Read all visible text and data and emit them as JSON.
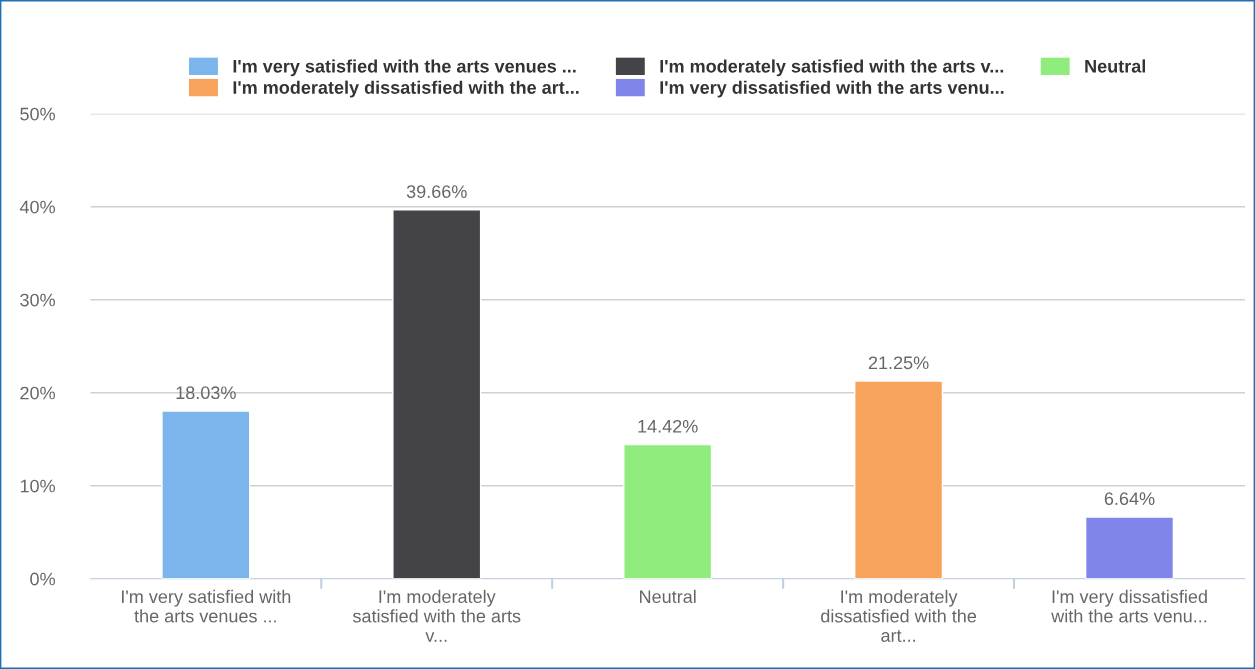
{
  "chart_data": {
    "type": "bar",
    "categories": [
      "I'm very satisfied with\nthe arts venues ...",
      "I'm moderately\nsatisfied with the arts\nv...",
      "Neutral",
      "I'm moderately\ndissatisfied with the\nart...",
      "I'm very dissatisfied\nwith the arts venu..."
    ],
    "series": [
      {
        "name": "I'm very satisfied with the arts venues ...",
        "color": "#7cb5ec",
        "values": [
          18.03,
          null,
          null,
          null,
          null
        ],
        "value_labels": [
          "18.03%",
          null,
          null,
          null,
          null
        ]
      },
      {
        "name": "I'm moderately satisfied with the arts v...",
        "color": "#434348",
        "values": [
          null,
          39.66,
          null,
          null,
          null
        ],
        "value_labels": [
          null,
          "39.66%",
          null,
          null,
          null
        ]
      },
      {
        "name": "Neutral",
        "color": "#90ed7d",
        "values": [
          null,
          null,
          14.42,
          null,
          null
        ],
        "value_labels": [
          null,
          null,
          "14.42%",
          null,
          null
        ]
      },
      {
        "name": "I'm moderately dissatisfied with the art...",
        "color": "#f7a35c",
        "values": [
          null,
          null,
          null,
          21.25,
          null
        ],
        "value_labels": [
          null,
          null,
          null,
          "21.25%",
          null
        ]
      },
      {
        "name": "I'm very dissatisfied with the arts venu...",
        "color": "#8085e9",
        "values": [
          null,
          null,
          null,
          null,
          6.64
        ],
        "value_labels": [
          null,
          null,
          null,
          null,
          "6.64%"
        ]
      }
    ],
    "ylim": [
      0,
      50
    ],
    "yticks": [
      {
        "value": 0,
        "label": "0%"
      },
      {
        "value": 10,
        "label": "10%"
      },
      {
        "value": 20,
        "label": "20%"
      },
      {
        "value": 30,
        "label": "30%"
      },
      {
        "value": 40,
        "label": "40%"
      },
      {
        "value": 50,
        "label": "50%"
      }
    ],
    "grid": "y",
    "legend": "top"
  }
}
